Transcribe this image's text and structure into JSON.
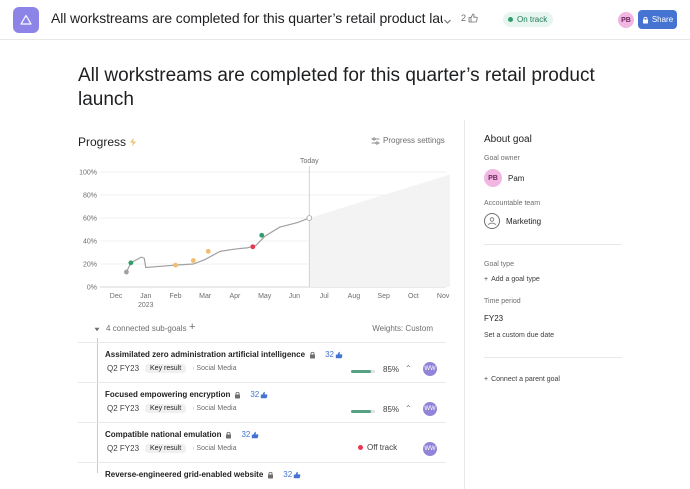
{
  "topbar": {
    "title": "All workstreams are completed for this quarter’s retail product launch with...",
    "like_count": "2",
    "status": "On track",
    "status_color": "#2f9e6e",
    "user_initials": "PB",
    "share_label": "Share",
    "app_icon": "triangle-icon"
  },
  "headline": "All workstreams are completed for this quarter’s retail product launch",
  "progress": {
    "label": "Progress",
    "settings_label": "Progress settings"
  },
  "chart_data": {
    "type": "line",
    "title": "",
    "xlabel": "",
    "ylabel": "",
    "x_ticks": [
      "Dec",
      "Jan\n2023",
      "Feb",
      "Mar",
      "Apr",
      "May",
      "Jun",
      "Jul",
      "Aug",
      "Sep",
      "Oct",
      "Nov"
    ],
    "y_ticks": [
      "0%",
      "20%",
      "40%",
      "60%",
      "80%",
      "100%"
    ],
    "ylim": [
      0,
      100
    ],
    "today_label": "Today",
    "today_x": 6.5,
    "grid": true,
    "series": [
      {
        "x": [
          0.35,
          0.5,
          0.85,
          0.95,
          1.0,
          1.5,
          2.0,
          2.6,
          3.0,
          3.5,
          4.0,
          4.4,
          4.7,
          5.0,
          5.5,
          6.1,
          6.5
        ],
        "values": [
          13,
          21,
          26,
          25,
          17,
          18,
          19,
          20,
          24,
          31,
          33,
          34,
          36,
          44,
          52,
          56,
          60
        ],
        "color": "#a2a0a2"
      }
    ],
    "markers": [
      {
        "x": 0.35,
        "y": 13,
        "color": "#a2a0a2"
      },
      {
        "x": 0.5,
        "y": 21,
        "color": "#2f9e6e"
      },
      {
        "x": 2.0,
        "y": 19,
        "color": "#f1bd6c"
      },
      {
        "x": 2.6,
        "y": 23,
        "color": "#f1bd6c"
      },
      {
        "x": 3.1,
        "y": 31,
        "color": "#f1bd6c"
      },
      {
        "x": 4.6,
        "y": 35,
        "color": "#e8384f"
      },
      {
        "x": 4.9,
        "y": 45,
        "color": "#2f9e6e"
      },
      {
        "x": 6.5,
        "y": 60,
        "color": "#ffffff"
      }
    ],
    "projection_end": {
      "x": 11.5,
      "y": 100
    }
  },
  "subgoals": {
    "count_label": "4 connected sub-goals",
    "weights_label": "Weights: Custom",
    "items": [
      {
        "name": "Assimilated zero administration artificial intelligence",
        "likes": "32",
        "period": "Q2 FY23",
        "type": "Key result",
        "team": "Social Media",
        "progress": 85,
        "pct_label": "85%",
        "status": "",
        "assignee": "WW"
      },
      {
        "name": "Focused empowering encryption",
        "likes": "32",
        "period": "Q2 FY23",
        "type": "Key result",
        "team": "Social Media",
        "progress": 85,
        "pct_label": "85%",
        "status": "",
        "assignee": "WW"
      },
      {
        "name": "Compatible national emulation",
        "likes": "32",
        "period": "Q2 FY23",
        "type": "Key result",
        "team": "Social Media",
        "progress": null,
        "pct_label": "",
        "status": "Off track",
        "assignee": "WW"
      },
      {
        "name": "Reverse-engineered grid-enabled website",
        "likes": "32",
        "period": "",
        "type": "",
        "team": "",
        "progress": null,
        "pct_label": "",
        "status": "",
        "assignee": ""
      }
    ]
  },
  "about": {
    "title": "About goal",
    "owner_label": "Goal owner",
    "owner_initials": "PB",
    "owner_name": "Pam",
    "team_label": "Accountable team",
    "team_name": "Marketing",
    "type_label": "Goal type",
    "add_type": "Add a goal type",
    "period_label": "Time period",
    "period_value": "FY23",
    "due_date": "Set a custom due date",
    "connect_parent": "Connect a parent goal"
  }
}
